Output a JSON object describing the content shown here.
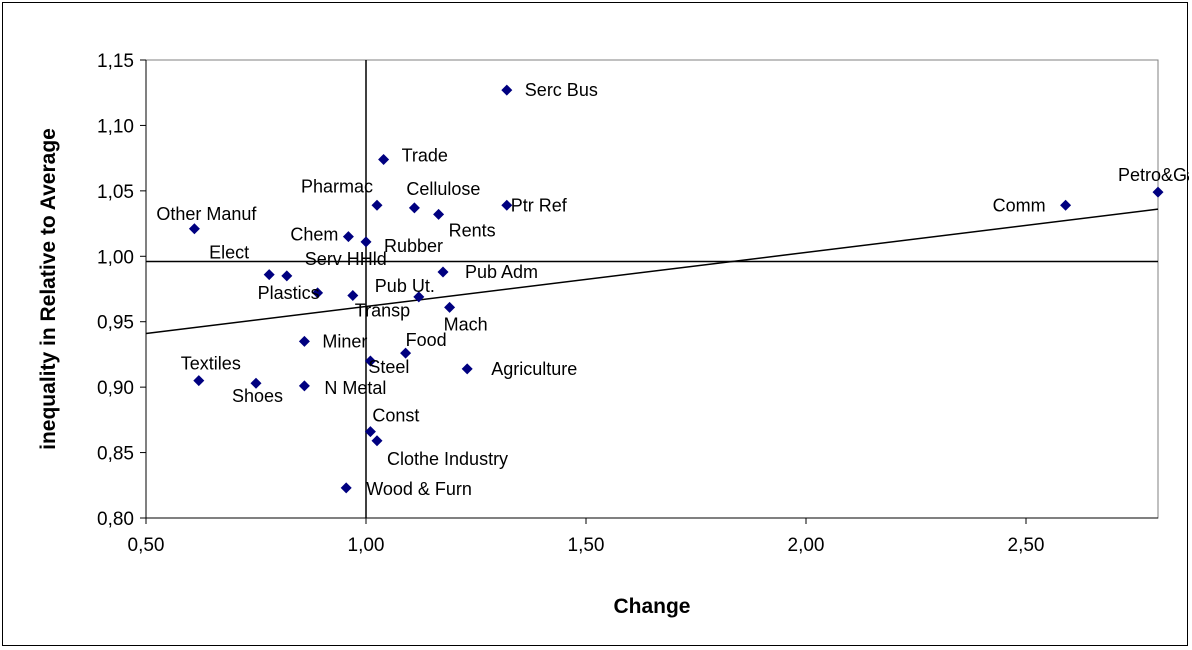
{
  "chart_data": {
    "type": "scatter",
    "title": "",
    "xlabel": "Change",
    "ylabel": "inequality in Relative to Average",
    "xlim": [
      0.5,
      2.8
    ],
    "ylim": [
      0.8,
      1.15
    ],
    "x_ticks": [
      "0,50",
      "1,00",
      "1,50",
      "2,00",
      "2,50"
    ],
    "y_ticks": [
      "0,80",
      "0,85",
      "0,90",
      "0,95",
      "1,00",
      "1,05",
      "1,10",
      "1,15"
    ],
    "grid": false,
    "marker_color": "#000080",
    "reference_lines": {
      "x": 1.0,
      "y": 0.996
    },
    "trendline": {
      "x": [
        0.5,
        2.8
      ],
      "y": [
        0.941,
        1.036
      ]
    },
    "points": [
      {
        "label": "Serc Bus",
        "x": 1.32,
        "y": 1.127
      },
      {
        "label": "Trade",
        "x": 1.04,
        "y": 1.074
      },
      {
        "label": "Pharmac",
        "x": 1.025,
        "y": 1.039
      },
      {
        "label": "Cellulose",
        "x": 1.11,
        "y": 1.037
      },
      {
        "label": "Ptr Ref",
        "x": 1.32,
        "y": 1.039
      },
      {
        "label": "Rents",
        "x": 1.165,
        "y": 1.032
      },
      {
        "label": "Other Manuf",
        "x": 0.61,
        "y": 1.021
      },
      {
        "label": "Chem",
        "x": 0.96,
        "y": 1.015
      },
      {
        "label": "Rubber",
        "x": 1.0,
        "y": 1.011
      },
      {
        "label": "Elect",
        "x": 0.78,
        "y": 0.986
      },
      {
        "label": "Serv HHld",
        "x": 0.82,
        "y": 0.985
      },
      {
        "label": "Pub Adm",
        "x": 1.175,
        "y": 0.988
      },
      {
        "label": "Plastics",
        "x": 0.89,
        "y": 0.972
      },
      {
        "label": "Transp",
        "x": 0.97,
        "y": 0.97
      },
      {
        "label": "Pub Ut.",
        "x": 1.12,
        "y": 0.969
      },
      {
        "label": "Mach",
        "x": 1.19,
        "y": 0.961
      },
      {
        "label": "Miner",
        "x": 0.86,
        "y": 0.935
      },
      {
        "label": "Food",
        "x": 1.09,
        "y": 0.926
      },
      {
        "label": "Steel",
        "x": 1.01,
        "y": 0.92
      },
      {
        "label": "Agriculture",
        "x": 1.23,
        "y": 0.914
      },
      {
        "label": "Textiles",
        "x": 0.62,
        "y": 0.905
      },
      {
        "label": "Shoes",
        "x": 0.75,
        "y": 0.903
      },
      {
        "label": "N Metal",
        "x": 0.86,
        "y": 0.901
      },
      {
        "label": "Const",
        "x": 1.01,
        "y": 0.866
      },
      {
        "label": "Clothe Industry",
        "x": 1.025,
        "y": 0.859
      },
      {
        "label": "Wood & Furn",
        "x": 0.955,
        "y": 0.823
      },
      {
        "label": "Petro&Gas",
        "x": 2.8,
        "y": 1.049
      },
      {
        "label": "Comm",
        "x": 2.59,
        "y": 1.039
      }
    ]
  }
}
